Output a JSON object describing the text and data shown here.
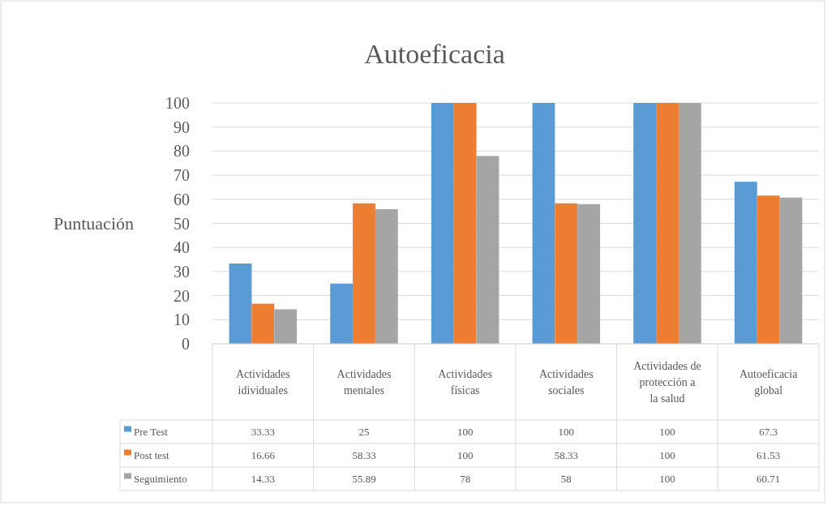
{
  "chart_data": {
    "type": "bar",
    "title": "Autoeficacia",
    "ylabel": "Puntuación",
    "categories": [
      "Actividades idividuales",
      "Actividades mentales",
      "Actividades físicas",
      "Actividades sociales",
      "Actividades de protección a la salud",
      "Autoeficacia global"
    ],
    "series": [
      {
        "name": "Pre Test",
        "color": "#5b9bd5",
        "values": [
          33.33,
          25,
          100,
          100,
          100,
          67.3
        ]
      },
      {
        "name": "Post test",
        "color": "#ed7d31",
        "values": [
          16.66,
          58.33,
          100,
          58.33,
          100,
          61.53
        ]
      },
      {
        "name": "Seguimiento",
        "color": "#a5a5a5",
        "values": [
          14.33,
          55.89,
          78,
          58,
          100,
          60.71
        ]
      }
    ],
    "ylim": [
      0,
      100
    ],
    "yticks": [
      0,
      10,
      20,
      30,
      40,
      50,
      60,
      70,
      80,
      90,
      100
    ],
    "grid": "y",
    "legend": "bottom",
    "data_labels": true
  }
}
